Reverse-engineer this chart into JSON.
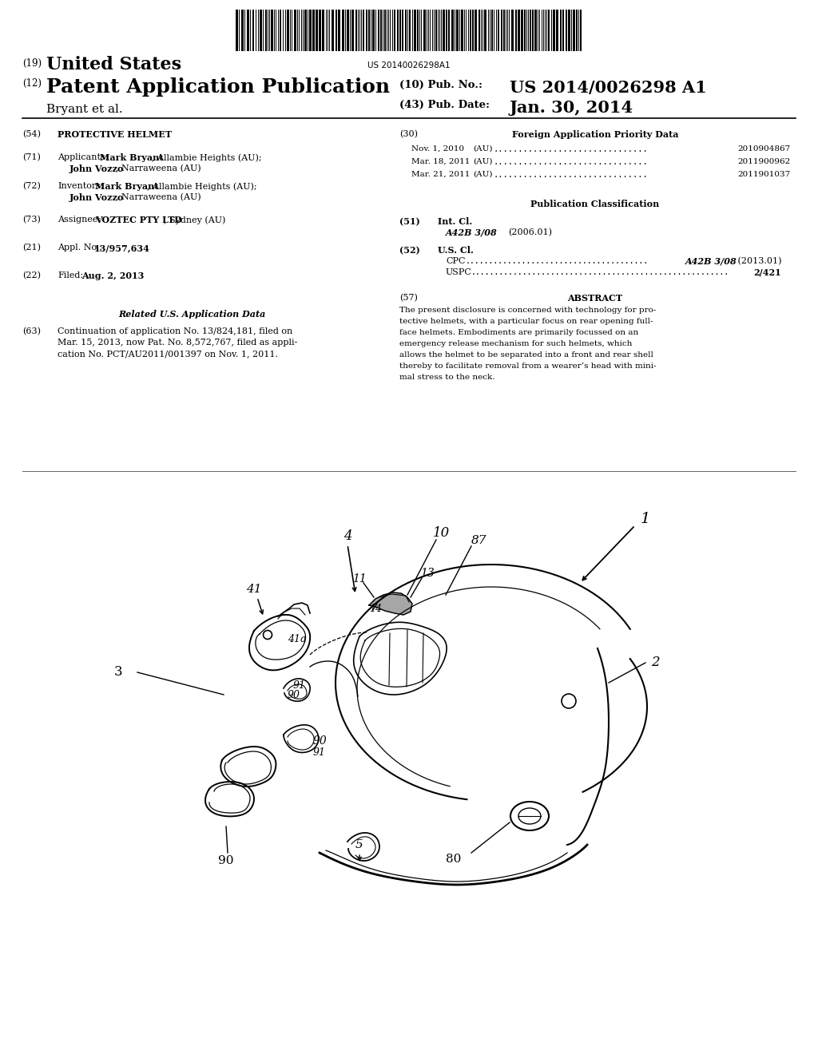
{
  "background_color": "#ffffff",
  "page_width": 10.24,
  "page_height": 13.2,
  "barcode_text": "US 20140026298A1",
  "header": {
    "country_label": "(19)",
    "country": "United States",
    "type_label": "(12)",
    "type": "Patent Application Publication",
    "authors": "Bryant et al.",
    "pub_no_label": "(10) Pub. No.:",
    "pub_no": "US 2014/0026298 A1",
    "date_label": "(43) Pub. Date:",
    "date": "Jan. 30, 2014"
  },
  "left_column": {
    "title_num": "(54)",
    "title": "PROTECTIVE HELMET",
    "applicants_num": "(71)",
    "applicants_label": "Applicants:",
    "inventors_num": "(72)",
    "inventors_label": "Inventors:",
    "assignee_num": "(73)",
    "assignee_label": "Assignee:",
    "appl_num": "(21)",
    "appl_label": "Appl. No.:",
    "appl": "13/957,634",
    "filed_num": "(22)",
    "filed_label": "Filed:",
    "filed": "Aug. 2, 2013",
    "related_header": "Related U.S. Application Data",
    "continuation_num": "(63)",
    "continuation_lines": [
      "Continuation of application No. 13/824,181, filed on",
      "Mar. 15, 2013, now Pat. No. 8,572,767, filed as appli-",
      "cation No. PCT/AU2011/001397 on Nov. 1, 2011."
    ]
  },
  "right_column": {
    "foreign_header_num": "(30)",
    "foreign_header": "Foreign Application Priority Data",
    "foreign_entries": [
      {
        "date": "Nov. 1, 2010",
        "country": "(AU)",
        "dots": "...............................",
        "number": "2010904867"
      },
      {
        "date": "Mar. 18, 2011",
        "country": "(AU)",
        "dots": "...............................",
        "number": "2011900962"
      },
      {
        "date": "Mar. 21, 2011",
        "country": "(AU)",
        "dots": "...............................",
        "number": "2011901037"
      }
    ],
    "pub_class_header": "Publication Classification",
    "int_cl_num": "(51)",
    "int_cl_label": "Int. Cl.",
    "int_cl_value": "A42B 3/08",
    "int_cl_date": "(2006.01)",
    "us_cl_num": "(52)",
    "us_cl_label": "U.S. Cl.",
    "cpc_label": "CPC",
    "cpc_value": "A42B 3/08",
    "cpc_date": "(2013.01)",
    "uspc_label": "USPC",
    "uspc_value": "2/421",
    "abstract_num": "(57)",
    "abstract_header": "ABSTRACT",
    "abstract_lines": [
      "The present disclosure is concerned with technology for pro-",
      "tective helmets, with a particular focus on rear opening full-",
      "face helmets. Embodiments are primarily focussed on an",
      "emergency release mechanism for such helmets, which",
      "allows the helmet to be separated into a front and rear shell",
      "thereby to facilitate removal from a wearer’s head with mini-",
      "mal stress to the neck."
    ]
  }
}
